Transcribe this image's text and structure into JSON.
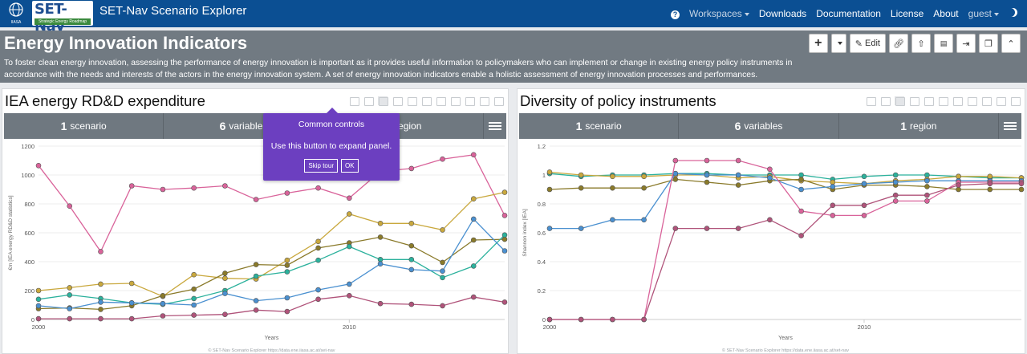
{
  "navbar": {
    "logo_top": "SET-Nav",
    "logo_bottom": "Strategic Energy Roadmap",
    "globe_caption": "IIASA",
    "title": "SET-Nav Scenario Explorer",
    "items": [
      "Workspaces",
      "Downloads",
      "Documentation",
      "License",
      "About"
    ],
    "user": "guest"
  },
  "header": {
    "title": "Energy Innovation Indicators",
    "description": "To foster clean energy innovation, assessing the performance of energy innovation is important as it provides useful information to policymakers who can implement or change in existing energy policy instruments in accordance with the needs and interests of the actors in the energy innovation system. A set of energy innovation indicators enable a holistic assessment of energy innovation processes and performances.",
    "edit_label": "Edit",
    "icons": [
      "plus-icon",
      "chevron-down-icon",
      "pencil-icon",
      "link-icon",
      "upload-icon",
      "pdf-icon",
      "export-icon",
      "copy-icon",
      "chevron-up-icon"
    ]
  },
  "panels": [
    {
      "title": "IEA energy RD&D expenditure",
      "stats": [
        {
          "count": "1",
          "label": "scenario"
        },
        {
          "count": "6",
          "label": "variables"
        },
        {
          "count": "1",
          "label": "region"
        }
      ]
    },
    {
      "title": "Diversity of policy instruments",
      "stats": [
        {
          "count": "1",
          "label": "scenario"
        },
        {
          "count": "6",
          "label": "variables"
        },
        {
          "count": "1",
          "label": "region"
        }
      ]
    }
  ],
  "tour": {
    "title": "Common controls",
    "text": "Use this button to expand panel.",
    "skip_label": "Skip tour",
    "ok_label": "OK"
  },
  "credit": "© SET-Nav Scenario Explorer https://data.ene.iiasa.ac.at/set-nav",
  "chart_data": [
    {
      "type": "line",
      "title": "",
      "xlabel": "Years",
      "ylabel": "€m [IEA energy RD&D statistics]",
      "xlim": [
        2000,
        2015
      ],
      "ylim": [
        0,
        1200
      ],
      "yticks": [
        0,
        200,
        400,
        600,
        800,
        1000,
        1200
      ],
      "xticks": [
        2000,
        2010
      ],
      "x": [
        2000,
        2001,
        2002,
        2003,
        2004,
        2005,
        2006,
        2007,
        2008,
        2009,
        2010,
        2011,
        2012,
        2013,
        2014,
        2015
      ],
      "series": [
        {
          "color": "#d9639a",
          "values": [
            1065,
            785,
            470,
            925,
            900,
            910,
            925,
            830,
            875,
            910,
            840,
            1025,
            1045,
            1110,
            1140,
            720
          ]
        },
        {
          "color": "#c9a83d",
          "values": [
            200,
            220,
            245,
            250,
            160,
            310,
            285,
            280,
            410,
            540,
            730,
            665,
            665,
            620,
            835,
            880
          ]
        },
        {
          "color": "#8a7a2a",
          "values": [
            75,
            80,
            70,
            95,
            165,
            210,
            320,
            380,
            375,
            495,
            530,
            570,
            510,
            395,
            550,
            555
          ]
        },
        {
          "color": "#2bb19c",
          "values": [
            140,
            170,
            145,
            115,
            105,
            145,
            200,
            300,
            330,
            410,
            505,
            415,
            415,
            290,
            370,
            585
          ]
        },
        {
          "color": "#4a90d0",
          "values": [
            95,
            75,
            120,
            115,
            110,
            100,
            180,
            130,
            150,
            205,
            245,
            385,
            345,
            335,
            695,
            475
          ]
        },
        {
          "color": "#b0537a",
          "values": [
            5,
            5,
            5,
            5,
            25,
            30,
            35,
            65,
            55,
            140,
            165,
            110,
            105,
            95,
            155,
            120
          ]
        }
      ]
    },
    {
      "type": "line",
      "title": "",
      "xlabel": "Years",
      "ylabel": "Shannon index [IEA]",
      "xlim": [
        2000,
        2015
      ],
      "ylim": [
        0,
        1.2
      ],
      "yticks": [
        0,
        0.2,
        0.4,
        0.6,
        0.8,
        1.0,
        1.2
      ],
      "xticks": [
        2000,
        2010
      ],
      "x": [
        2000,
        2001,
        2002,
        2003,
        2004,
        2005,
        2006,
        2007,
        2008,
        2009,
        2010,
        2011,
        2012,
        2013,
        2014,
        2015
      ],
      "series": [
        {
          "color": "#2bb19c",
          "values": [
            1.01,
            0.99,
            1.0,
            1.0,
            1.01,
            1.01,
            1.0,
            1.0,
            1.0,
            0.97,
            0.99,
            1.0,
            1.0,
            0.99,
            0.98,
            0.98
          ]
        },
        {
          "color": "#c9a83d",
          "values": [
            1.02,
            1.0,
            0.99,
            0.99,
            1.0,
            1.0,
            0.98,
            0.99,
            0.96,
            0.95,
            0.94,
            0.96,
            0.97,
            0.99,
            0.99,
            0.98
          ]
        },
        {
          "color": "#8a7a2a",
          "values": [
            0.9,
            0.91,
            0.91,
            0.91,
            0.97,
            0.95,
            0.93,
            0.96,
            0.97,
            0.9,
            0.93,
            0.93,
            0.92,
            0.9,
            0.9,
            0.9
          ]
        },
        {
          "color": "#4a90d0",
          "values": [
            0.63,
            0.63,
            0.69,
            0.69,
            1.01,
            1.0,
            1.0,
            0.98,
            0.9,
            0.92,
            0.94,
            0.95,
            0.96,
            0.96,
            0.96,
            0.96
          ]
        },
        {
          "color": "#d9639a",
          "values": [
            0,
            0,
            0,
            0,
            1.1,
            1.1,
            1.1,
            1.04,
            0.75,
            0.72,
            0.72,
            0.82,
            0.82,
            0.95,
            0.95,
            0.95
          ]
        },
        {
          "color": "#b0537a",
          "values": [
            0,
            0,
            0,
            0,
            0.63,
            0.63,
            0.63,
            0.69,
            0.58,
            0.79,
            0.79,
            0.86,
            0.86,
            0.93,
            0.94,
            0.94
          ]
        }
      ]
    }
  ]
}
